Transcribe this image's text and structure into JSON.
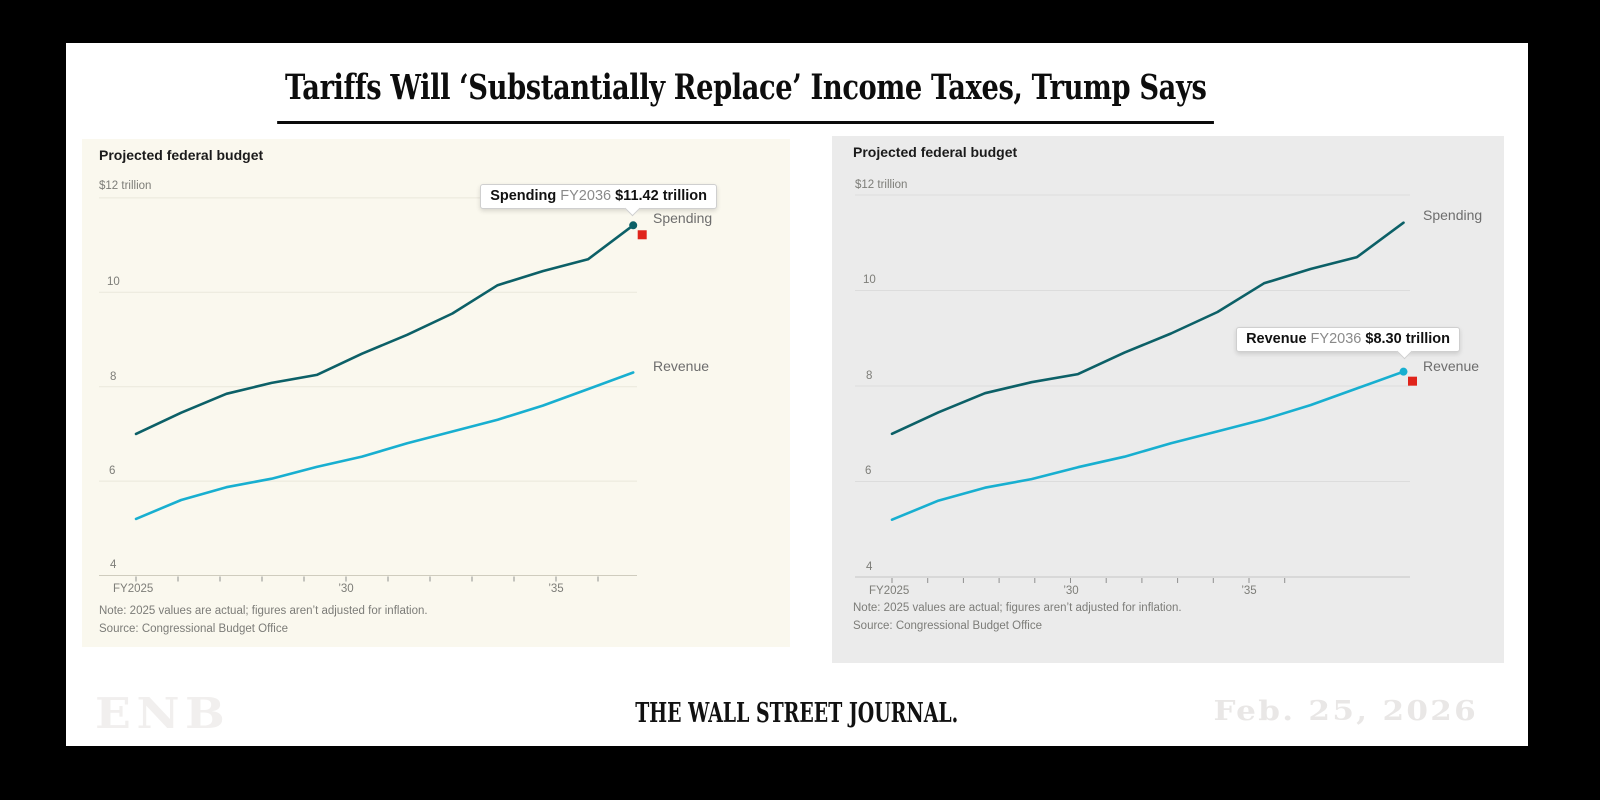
{
  "page": {
    "title": "Tariffs Will ‘Substantially Replace’ Income Taxes, Trump Says"
  },
  "footer": {
    "watermark_left": "ENB",
    "masthead": "THE WALL STREET JOURNAL.",
    "watermark_right": "Feb. 25, 2026"
  },
  "colors": {
    "spending_line": "#0c6067",
    "revenue_line": "#18afd0",
    "hover_marker_red": "#e0241b",
    "left_panel_bg": "#faf8ee",
    "right_panel_bg": "#ebebeb"
  },
  "chart_data": [
    {
      "type": "line",
      "title": "Projected federal budget",
      "x": [
        2025,
        2026,
        2027,
        2028,
        2029,
        2030,
        2031,
        2032,
        2033,
        2034,
        2035,
        2036
      ],
      "x_tick_labels": [
        "FY2025",
        "’30",
        "’35"
      ],
      "y_axis_labels": [
        "$12 trillion",
        "10",
        "8",
        "6",
        "4"
      ],
      "y_ticks": [
        12,
        10,
        8,
        6,
        4
      ],
      "ylim": [
        4,
        12
      ],
      "grid": true,
      "series": [
        {
          "name": "Spending",
          "values": [
            7.0,
            7.45,
            7.85,
            8.08,
            8.25,
            8.7,
            9.1,
            9.55,
            10.15,
            10.45,
            10.7,
            11.42
          ]
        },
        {
          "name": "Revenue",
          "values": [
            5.2,
            5.6,
            5.87,
            6.05,
            6.3,
            6.52,
            6.8,
            7.05,
            7.3,
            7.6,
            7.95,
            8.3
          ]
        }
      ],
      "highlight": {
        "label": "Spending",
        "period": "FY2036",
        "value": "$11.42 trillion"
      },
      "note": "Note: 2025 values are actual; figures aren’t adjusted for inflation.",
      "source": "Source: Congressional Budget Office"
    },
    {
      "type": "line",
      "title": "Projected federal budget",
      "x": [
        2025,
        2026,
        2027,
        2028,
        2029,
        2030,
        2031,
        2032,
        2033,
        2034,
        2035,
        2036
      ],
      "x_tick_labels": [
        "FY2025",
        "’30",
        "’35"
      ],
      "y_axis_labels": [
        "$12 trillion",
        "10",
        "8",
        "6",
        "4"
      ],
      "y_ticks": [
        12,
        10,
        8,
        6,
        4
      ],
      "ylim": [
        4,
        12
      ],
      "grid": true,
      "series": [
        {
          "name": "Spending",
          "values": [
            7.0,
            7.45,
            7.85,
            8.08,
            8.25,
            8.7,
            9.1,
            9.55,
            10.15,
            10.45,
            10.7,
            11.42
          ]
        },
        {
          "name": "Revenue",
          "values": [
            5.2,
            5.6,
            5.87,
            6.05,
            6.3,
            6.52,
            6.8,
            7.05,
            7.3,
            7.6,
            7.95,
            8.3
          ]
        }
      ],
      "highlight": {
        "label": "Revenue",
        "period": "FY2036",
        "value": "$8.30 trillion"
      },
      "note": "Note: 2025 values are actual; figures aren’t adjusted for inflation.",
      "source": "Source: Congressional Budget Office"
    }
  ]
}
